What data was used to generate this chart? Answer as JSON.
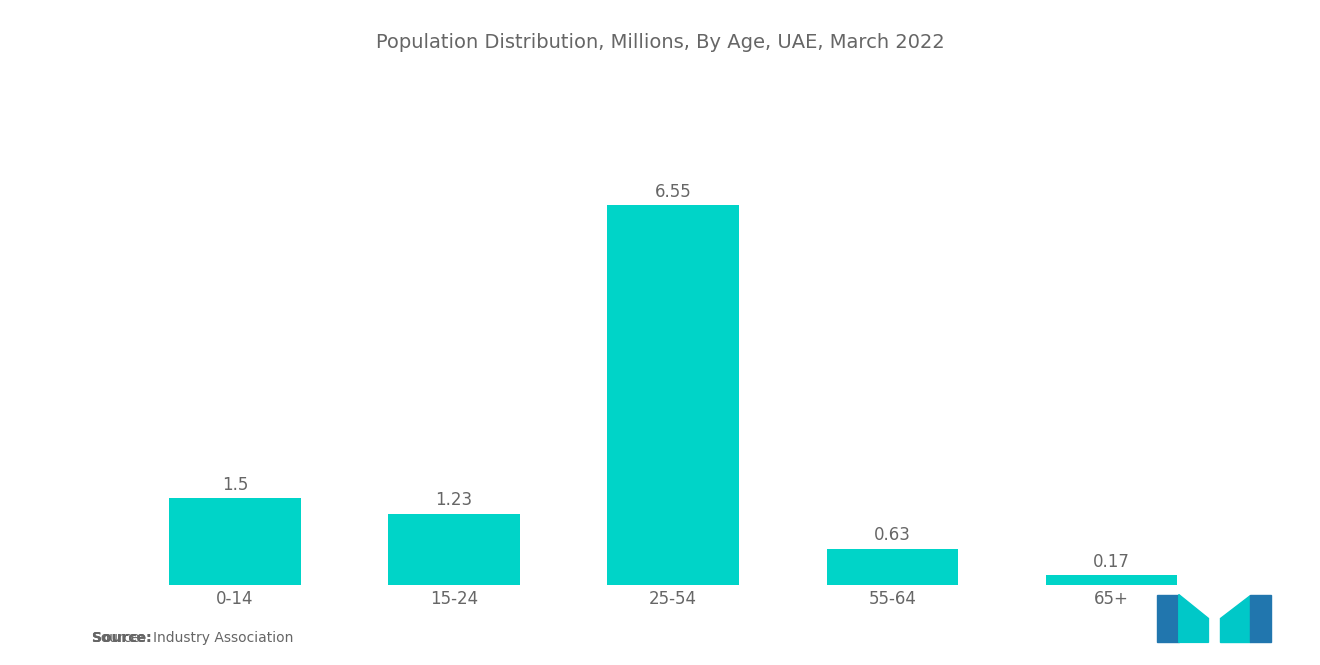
{
  "title": "Population Distribution, Millions, By Age, UAE, March 2022",
  "categories": [
    "0-14",
    "15-24",
    "25-54",
    "55-64",
    "65+"
  ],
  "values": [
    1.5,
    1.23,
    6.55,
    0.63,
    0.17
  ],
  "bar_color": "#00D4C8",
  "background_color": "#ffffff",
  "title_color": "#666666",
  "title_fontsize": 14,
  "label_fontsize": 12,
  "value_fontsize": 12,
  "source_bold": "Source:",
  "source_normal": "  Industry Association",
  "ylim": [
    0,
    7.8
  ],
  "bar_width": 0.6,
  "logo_left_color": "#2176AE",
  "logo_right_color": "#1A3A5C",
  "logo_teal_color": "#00C8C8"
}
